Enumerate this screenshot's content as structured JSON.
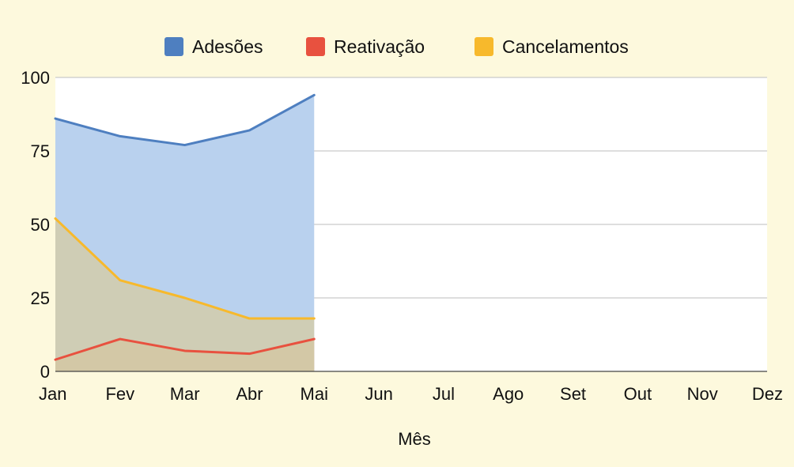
{
  "chart_data": {
    "type": "area",
    "title": "",
    "xlabel": "Mês",
    "ylabel": "",
    "categories": [
      "Jan",
      "Fev",
      "Mar",
      "Abr",
      "Mai",
      "Jun",
      "Jul",
      "Ago",
      "Set",
      "Out",
      "Nov",
      "Dez"
    ],
    "ylim": [
      0,
      100
    ],
    "yticks": [
      0,
      25,
      50,
      75,
      100
    ],
    "grid": true,
    "legend_position": "top",
    "series": [
      {
        "name": "Adesões",
        "color": "#4e7fc0",
        "fill": "#b9d1ee",
        "values": [
          86,
          80,
          77,
          82,
          94,
          null,
          null,
          null,
          null,
          null,
          null,
          null
        ]
      },
      {
        "name": "Reativação",
        "color": "#e8513f",
        "fill": "#d7a77e",
        "values": [
          4,
          11,
          7,
          6,
          11,
          null,
          null,
          null,
          null,
          null,
          null,
          null
        ]
      },
      {
        "name": "Cancelamentos",
        "color": "#f7b92c",
        "fill": "#d2ccaa",
        "values": [
          52,
          31,
          25,
          18,
          18,
          null,
          null,
          null,
          null,
          null,
          null,
          null
        ]
      }
    ]
  }
}
